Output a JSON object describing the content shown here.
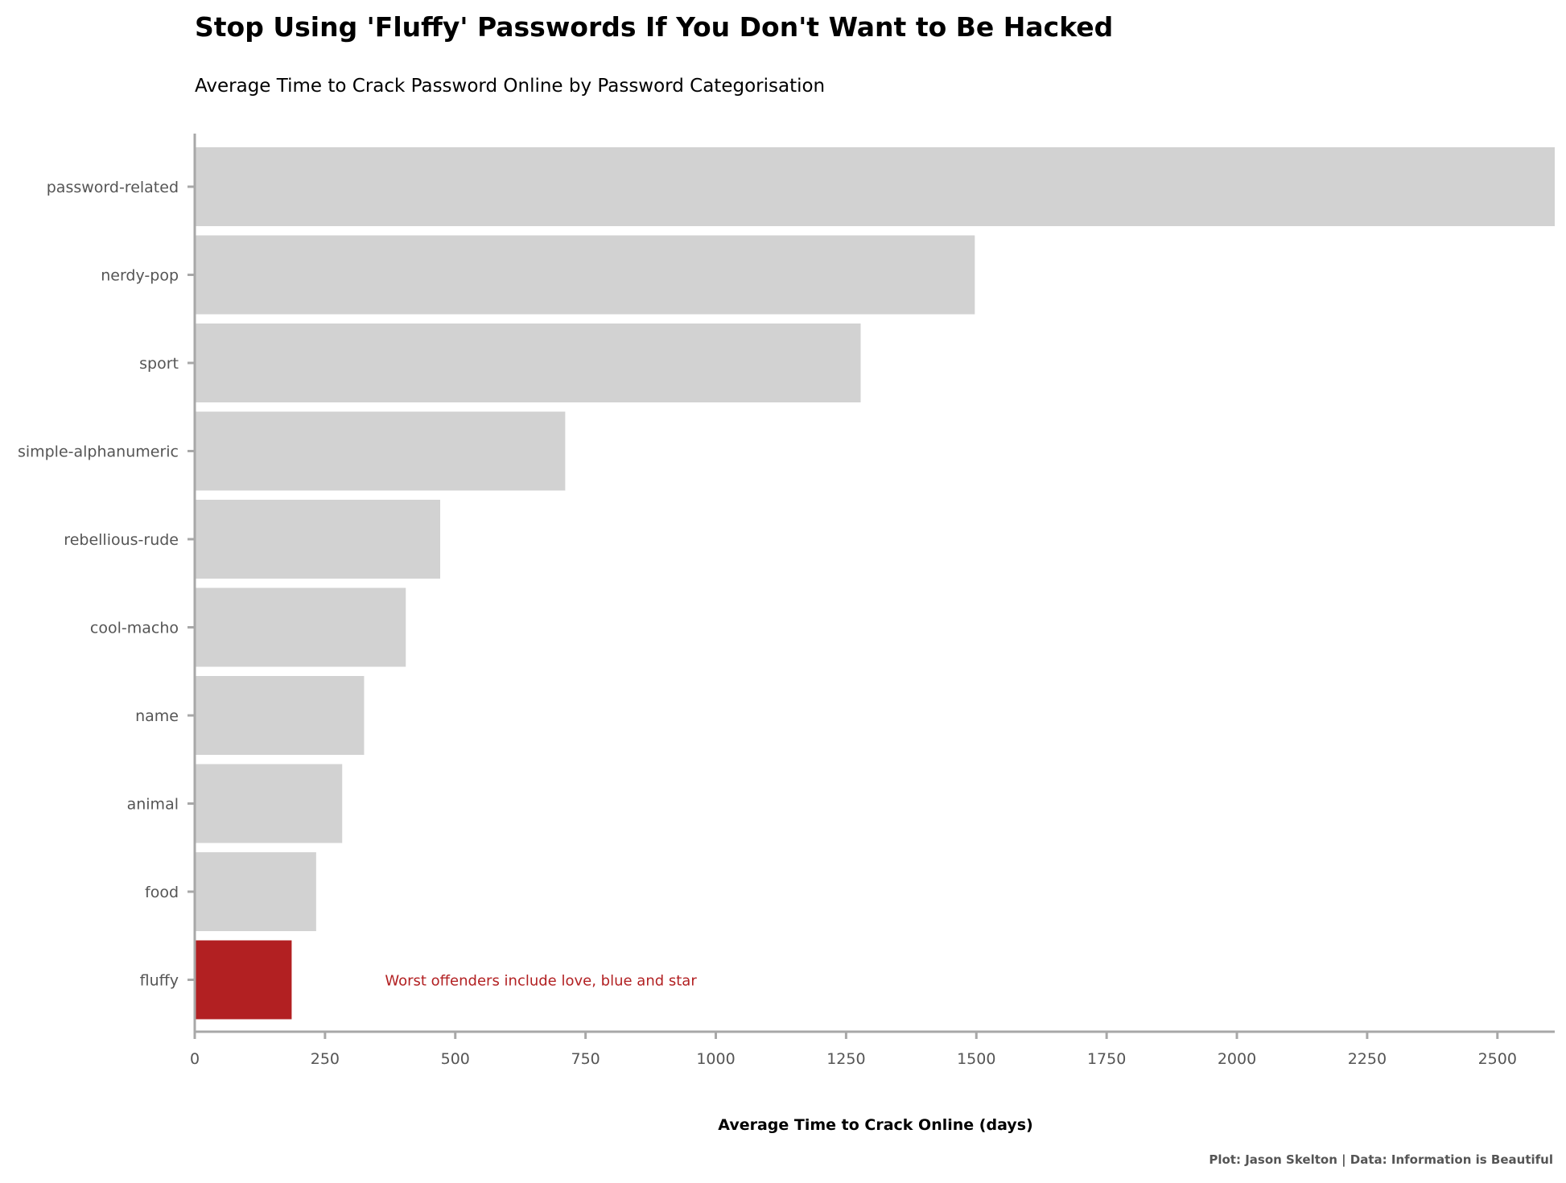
{
  "chart_data": {
    "type": "bar",
    "orientation": "horizontal",
    "title": "Stop Using 'Fluffy' Passwords If You Don't Want to Be Hacked",
    "subtitle": "Average Time to Crack Password Online by Password Categorisation",
    "xlabel": "Average Time to Crack Online (days)",
    "ylabel": "",
    "caption": "Plot: Jason Skelton | Data: Information is Beautiful",
    "categories": [
      "password-related",
      "nerdy-pop",
      "sport",
      "simple-alphanumeric",
      "rebellious-rude",
      "cool-macho",
      "name",
      "animal",
      "food",
      "fluffy"
    ],
    "values": [
      2610,
      1497,
      1278,
      711,
      471,
      405,
      325,
      283,
      233,
      186
    ],
    "highlight_category": "fluffy",
    "xlim": [
      0,
      2610
    ],
    "x_ticks": [
      "0",
      "250",
      "500",
      "750",
      "1000",
      "1250",
      "1500",
      "1750",
      "2000",
      "2250",
      "2500"
    ],
    "annotation": "Worst offenders include love, blue and star",
    "annotation_x": 365,
    "annotation_category": "fluffy",
    "grid": false,
    "legend": "none",
    "colors": {
      "bar": "#d2d2d2",
      "highlight": "#b22022",
      "axis": "#a8a8a8",
      "tick_label": "#555555",
      "annotation": "#b22022"
    }
  }
}
